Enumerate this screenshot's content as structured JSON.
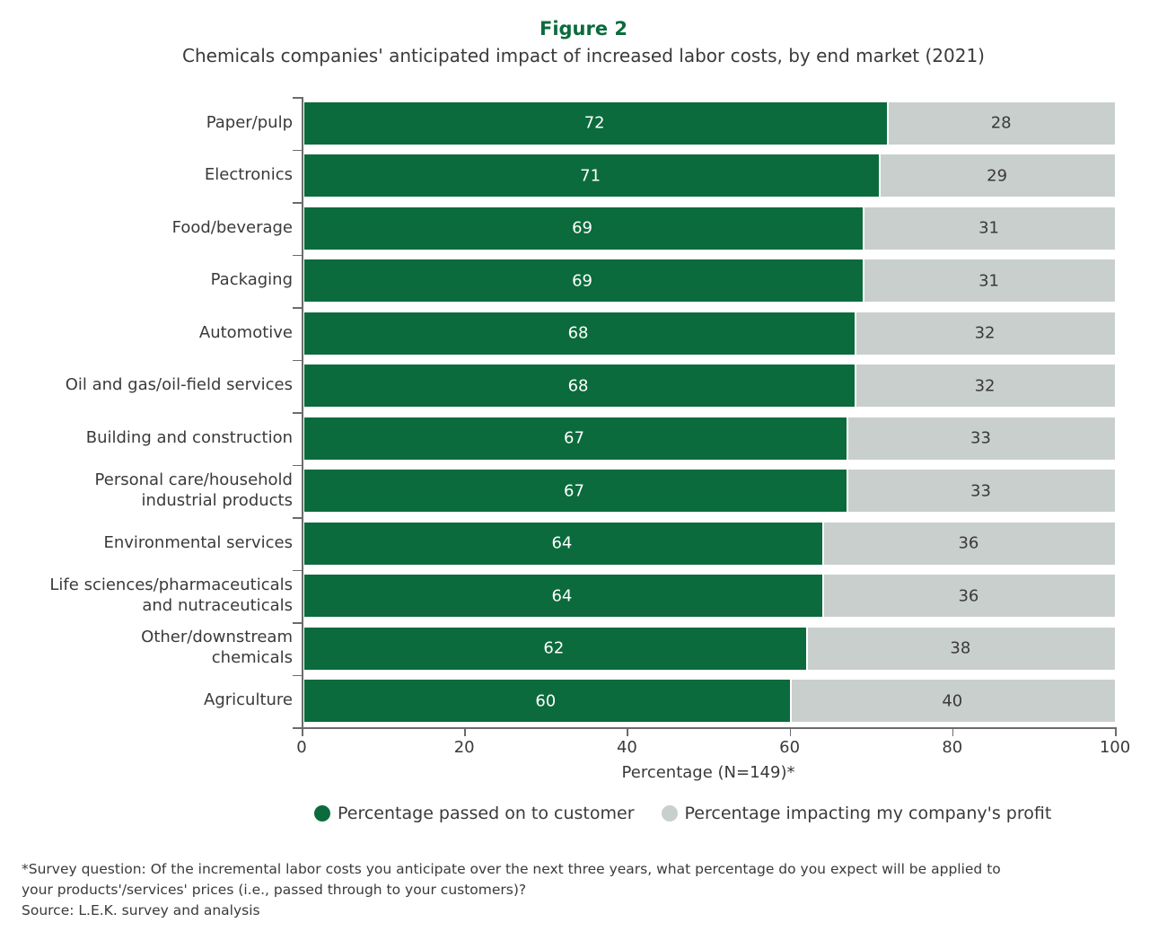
{
  "title": "Figure 2",
  "subtitle": "Chemicals companies' anticipated impact of increased labor costs, by end market (2021)",
  "chart_data": {
    "type": "bar",
    "orientation": "horizontal",
    "stacked": true,
    "categories": [
      "Paper/pulp",
      "Electronics",
      "Food/beverage",
      "Packaging",
      "Automotive",
      "Oil and gas/oil-field services",
      "Building and construction",
      "Personal care/household\nindustrial products",
      "Environmental services",
      "Life sciences/pharmaceuticals\nand nutraceuticals",
      "Other/downstream\nchemicals",
      "Agriculture"
    ],
    "series": [
      {
        "name": "Percentage passed on to customer",
        "color": "#0b6b3c",
        "values": [
          72,
          71,
          69,
          69,
          68,
          68,
          67,
          67,
          64,
          64,
          62,
          60
        ]
      },
      {
        "name": "Percentage impacting my company's profit",
        "color": "#c9cfcc",
        "values": [
          28,
          29,
          31,
          31,
          32,
          32,
          33,
          33,
          36,
          36,
          38,
          40
        ]
      }
    ],
    "xlabel": "Percentage (N=149)*",
    "xlim": [
      0,
      100
    ],
    "xticks": [
      "0",
      "20",
      "40",
      "60",
      "80",
      "100"
    ],
    "grid": false,
    "legend": "bottom"
  },
  "footnote": {
    "line1": "*Survey question: Of the incremental labor costs you anticipate over the next three years, what percentage do you expect will be applied to",
    "line2": "your products'/services' prices (i.e., passed through to your customers)?",
    "source": "Source: L.E.K. survey and analysis"
  }
}
